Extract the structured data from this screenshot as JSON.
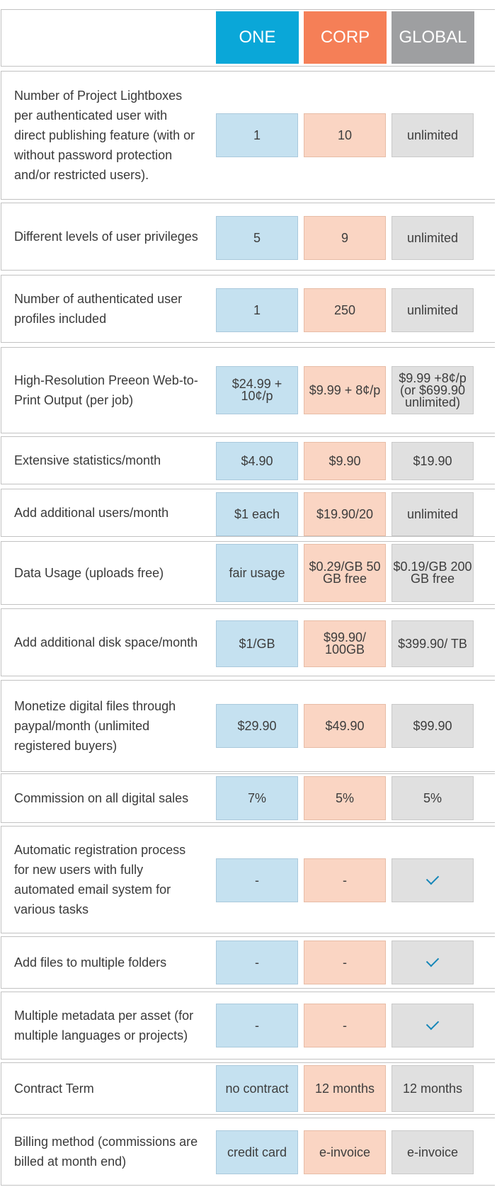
{
  "header": {
    "plans": [
      "ONE",
      "CORP",
      "GLOBAL"
    ]
  },
  "rows": [
    {
      "label": "Number of Project Lightboxes per authenticated user with direct publishing feature (with or without password protection and/or restricted users).",
      "values": [
        "1",
        "10",
        "unlimited"
      ]
    },
    {
      "label": "Different levels of user privileges",
      "values": [
        "5",
        "9",
        "unlimited"
      ]
    },
    {
      "label": "Number of authenticated user profiles included",
      "values": [
        "1",
        "250",
        "unlimited"
      ]
    },
    {
      "label": "High-Resolution Preeon Web-to-Print Output (per job)",
      "values": [
        "$24.99 + 10¢/p",
        "$9.99 + 8¢/p",
        "$9.99 +8¢/p (or $699.90 unlimited)"
      ]
    },
    {
      "label": "Extensive statistics/month",
      "values": [
        "$4.90",
        "$9.90",
        "$19.90"
      ]
    },
    {
      "label": "Add additional users/month",
      "values": [
        "$1 each",
        "$19.90/20",
        "unlimited"
      ]
    },
    {
      "label": "Data Usage (uploads free)",
      "values": [
        "fair usage",
        "$0.29/GB 50 GB free",
        "$0.19/GB 200 GB free"
      ]
    },
    {
      "label": "Add additional disk space/month",
      "values": [
        "$1/GB",
        "$99.90/ 100GB",
        "$399.90/ TB"
      ]
    },
    {
      "label": "Monetize digital files through paypal/month (unlimited registered buyers)",
      "values": [
        "$29.90",
        "$49.90",
        "$99.90"
      ]
    },
    {
      "label": "Commission on all digital sales",
      "values": [
        "7%",
        "5%",
        "5%"
      ]
    },
    {
      "label": "Automatic registration process for new users with fully automated email system for various tasks",
      "values": [
        "-",
        "-",
        "✓"
      ]
    },
    {
      "label": "Add files to multiple folders",
      "values": [
        "-",
        "-",
        "✓"
      ]
    },
    {
      "label": "Multiple metadata per asset (for multiple languages or projects)",
      "values": [
        "-",
        "-",
        "✓"
      ]
    },
    {
      "label": "Contract Term",
      "values": [
        "no contract",
        "12 months",
        "12 months"
      ]
    },
    {
      "label": "Billing method (commissions are billed at month end)",
      "values": [
        "credit card",
        "e-invoice",
        "e-invoice"
      ]
    }
  ],
  "colors": {
    "one": "#0aa7d8",
    "corp": "#f57f57",
    "global": "#9e9fa1"
  }
}
